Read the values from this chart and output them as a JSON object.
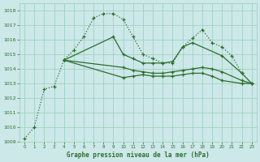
{
  "background_color": "#cce8e8",
  "grid_color": "#99ccbb",
  "line_color": "#2d6e2d",
  "title": "Graphe pression niveau de la mer (hPa)",
  "xlim": [
    -0.5,
    23.5
  ],
  "ylim": [
    1009,
    1018.5
  ],
  "yticks": [
    1009,
    1010,
    1011,
    1012,
    1013,
    1014,
    1015,
    1016,
    1017,
    1018
  ],
  "xticks": [
    0,
    1,
    2,
    3,
    4,
    5,
    6,
    7,
    8,
    9,
    10,
    11,
    12,
    13,
    14,
    15,
    16,
    17,
    18,
    19,
    20,
    21,
    22,
    23
  ],
  "curve1_x": [
    0,
    1,
    2,
    3,
    4,
    5,
    6,
    7,
    8,
    9,
    10,
    11,
    12,
    13,
    14,
    15,
    16,
    17,
    18,
    19,
    20,
    21,
    22
  ],
  "curve1_y": [
    1009.2,
    1010.0,
    1012.6,
    1012.8,
    1014.6,
    1015.3,
    1016.2,
    1017.5,
    1017.8,
    1017.8,
    1017.4,
    1016.2,
    1015.0,
    1014.7,
    1014.4,
    1014.4,
    1015.5,
    1016.1,
    1016.7,
    1015.8,
    1015.5,
    1014.9,
    1013.7
  ],
  "curve2_x": [
    4,
    9,
    10,
    11,
    12,
    13,
    14,
    15,
    16,
    17,
    20,
    22,
    23
  ],
  "curve2_y": [
    1014.6,
    1016.2,
    1015.0,
    1014.7,
    1014.4,
    1014.4,
    1014.4,
    1014.5,
    1015.5,
    1015.8,
    1014.9,
    1013.7,
    1013.0
  ],
  "curve3_x": [
    4,
    10,
    11,
    12,
    13,
    14,
    15,
    16,
    17,
    18,
    19,
    20,
    22,
    23
  ],
  "curve3_y": [
    1014.6,
    1014.1,
    1013.9,
    1013.8,
    1013.7,
    1013.7,
    1013.8,
    1013.9,
    1014.0,
    1014.1,
    1014.0,
    1013.8,
    1013.2,
    1013.0
  ],
  "curve4_x": [
    4,
    10,
    11,
    12,
    13,
    14,
    15,
    16,
    17,
    18,
    19,
    20,
    22,
    23
  ],
  "curve4_y": [
    1014.6,
    1013.4,
    1013.5,
    1013.6,
    1013.5,
    1013.5,
    1013.5,
    1013.6,
    1013.7,
    1013.7,
    1013.5,
    1013.2,
    1013.0,
    1013.0
  ]
}
